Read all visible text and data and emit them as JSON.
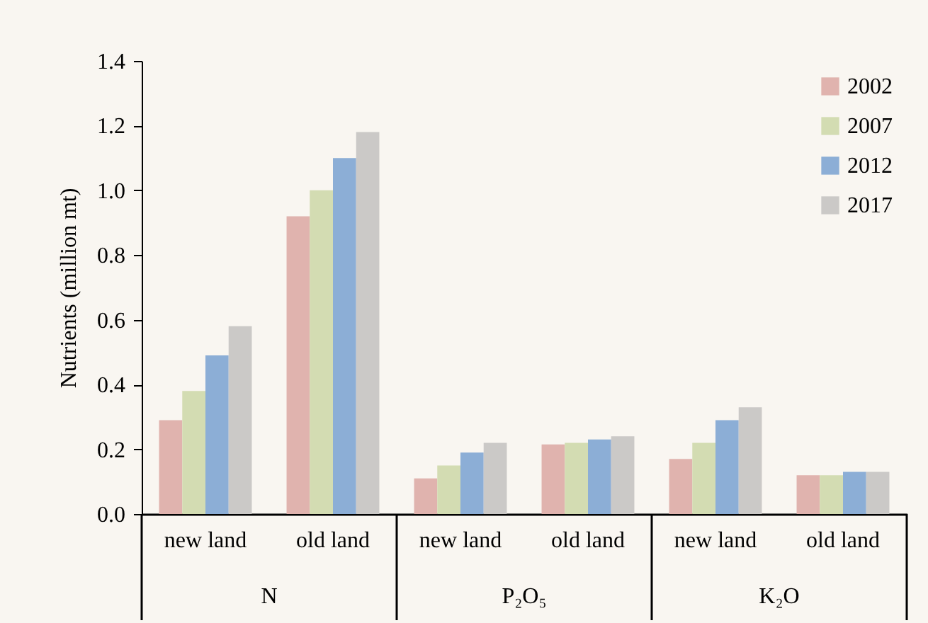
{
  "chart_data": {
    "type": "bar",
    "ylabel": "Nutrients (million mt)",
    "categories": [
      "new land",
      "old land",
      "new land",
      "old land",
      "new land",
      "old land"
    ],
    "annotations": [
      "N",
      "P₂O₅",
      "K₂O"
    ],
    "series": [
      {
        "name": "2002",
        "color": "#e0b3ae",
        "values": [
          0.29,
          0.92,
          0.11,
          0.215,
          0.17,
          0.12
        ]
      },
      {
        "name": "2007",
        "color": "#d3dcb2",
        "values": [
          0.38,
          1.0,
          0.15,
          0.22,
          0.22,
          0.12
        ]
      },
      {
        "name": "2012",
        "color": "#8caed6",
        "values": [
          0.49,
          1.1,
          0.19,
          0.23,
          0.29,
          0.13
        ]
      },
      {
        "name": "2017",
        "color": "#cbc9c7",
        "values": [
          0.58,
          1.18,
          0.22,
          0.24,
          0.33,
          0.13
        ]
      }
    ],
    "ylim": [
      0,
      1.4
    ],
    "yticks": [
      {
        "value": 0,
        "label": "0.0"
      },
      {
        "value": 0.2,
        "label": "0.2"
      },
      {
        "value": 0.4,
        "label": "0.4"
      },
      {
        "value": 0.6,
        "label": "0.6"
      },
      {
        "value": 0.8,
        "label": "0.8"
      },
      {
        "value": 1,
        "label": "1.0"
      },
      {
        "value": 1.2,
        "label": "1.2"
      },
      {
        "value": 1.4,
        "label": "1.4"
      }
    ],
    "legend": "top right",
    "grid": false
  }
}
